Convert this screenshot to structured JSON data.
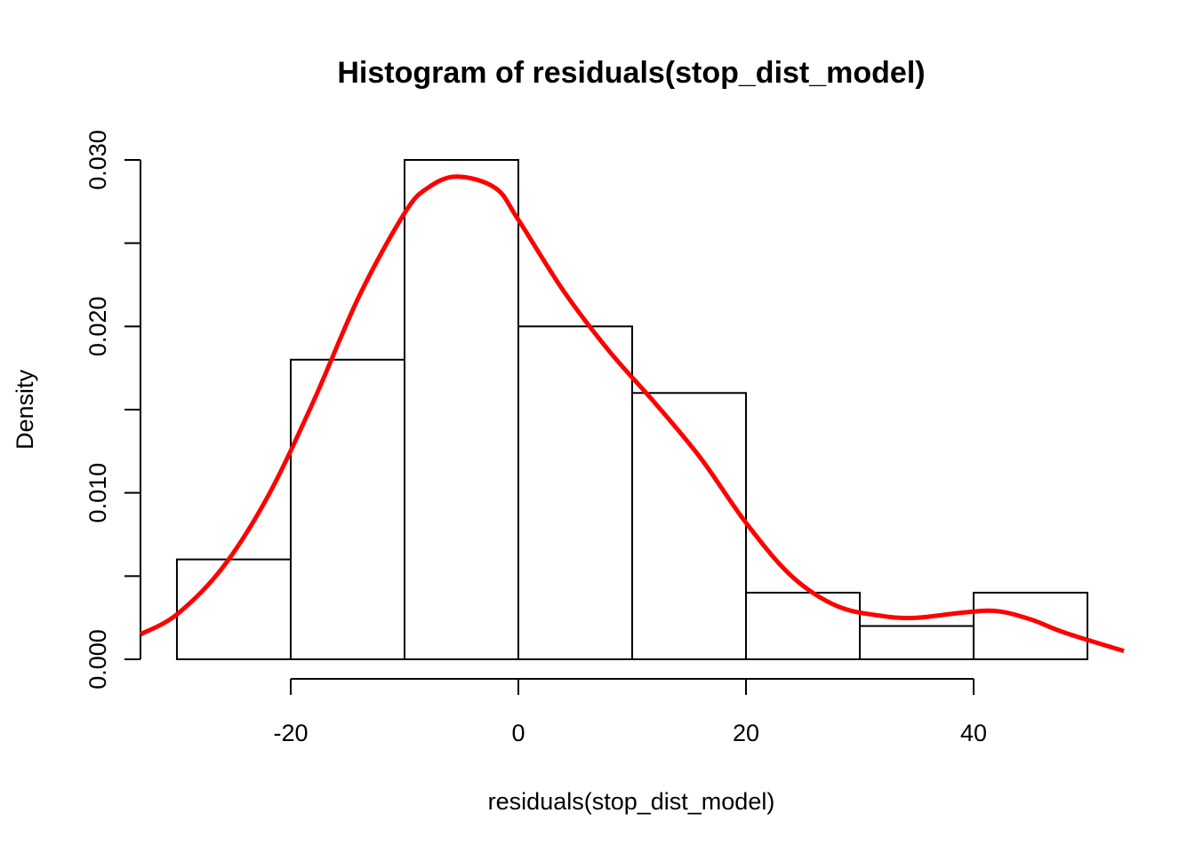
{
  "chart_data": {
    "type": "bar",
    "title": "Histogram of residuals(stop_dist_model)",
    "xlabel": "residuals(stop_dist_model)",
    "ylabel": "Density",
    "bins": [
      {
        "x0": -30,
        "x1": -20,
        "density": 0.006
      },
      {
        "x0": -20,
        "x1": -10,
        "density": 0.018
      },
      {
        "x0": -10,
        "x1": 0,
        "density": 0.03
      },
      {
        "x0": 0,
        "x1": 10,
        "density": 0.02
      },
      {
        "x0": 10,
        "x1": 20,
        "density": 0.016
      },
      {
        "x0": 20,
        "x1": 30,
        "density": 0.004
      },
      {
        "x0": 30,
        "x1": 40,
        "density": 0.002
      },
      {
        "x0": 40,
        "x1": 50,
        "density": 0.004
      }
    ],
    "density_curve": {
      "color": "#ff0000",
      "x": [
        -33.2,
        -30,
        -26,
        -22,
        -18,
        -14,
        -10,
        -8,
        -5.4,
        -2,
        0,
        4,
        8,
        12,
        16,
        20,
        24,
        28,
        32,
        35,
        39,
        42,
        45,
        48,
        53.2
      ],
      "y": [
        0.0015,
        0.0027,
        0.0055,
        0.0098,
        0.0155,
        0.0218,
        0.0268,
        0.0283,
        0.029,
        0.0283,
        0.0264,
        0.0221,
        0.0185,
        0.0154,
        0.0121,
        0.0082,
        0.005,
        0.0032,
        0.0026,
        0.0025,
        0.0028,
        0.0029,
        0.0024,
        0.0016,
        0.0005
      ]
    },
    "xlim": [
      -33.2,
      53.2
    ],
    "ylim": [
      0,
      0.03
    ],
    "x_ticks": [
      -20,
      0,
      20,
      40
    ],
    "x_tick_labels": [
      "-20",
      "0",
      "20",
      "40"
    ],
    "y_ticks": [
      0,
      0.005,
      0.01,
      0.015,
      0.02,
      0.025,
      0.03
    ],
    "y_tick_labels": [
      "0.000",
      "",
      "0.010",
      "",
      "0.020",
      "",
      "0.030"
    ],
    "bar_fill": "#ffffff",
    "bar_stroke": "#000000",
    "grid": false
  }
}
